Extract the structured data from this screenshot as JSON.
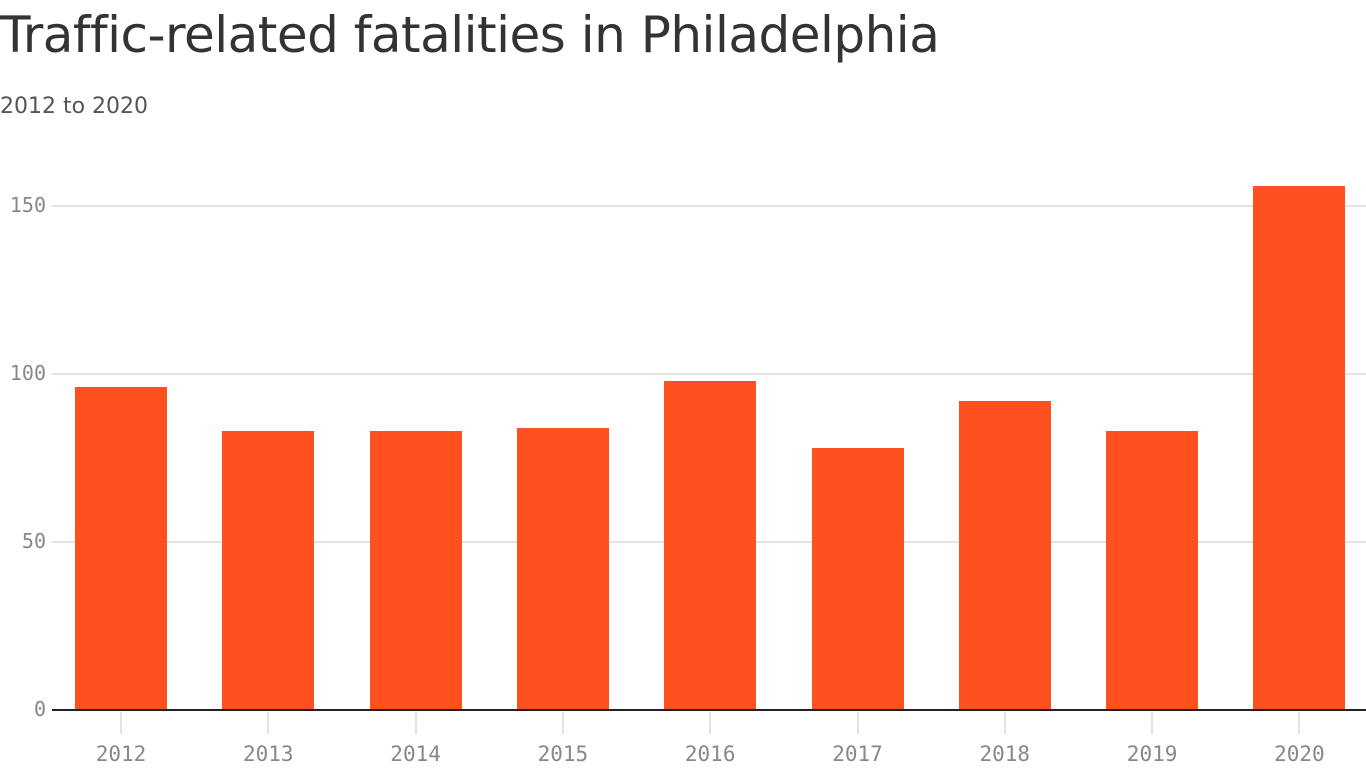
{
  "header": {
    "title": "Traffic-related fatalities in Philadelphia",
    "subtitle": "2012 to 2020"
  },
  "colors": {
    "bar": "#ff5020",
    "grid": "#e3e3e3",
    "axis": "#222222",
    "tick_text": "#888888"
  },
  "chart_data": {
    "type": "bar",
    "title": "Traffic-related fatalities in Philadelphia",
    "subtitle": "2012 to 2020",
    "xlabel": "",
    "ylabel": "",
    "categories": [
      "2012",
      "2013",
      "2014",
      "2015",
      "2016",
      "2017",
      "2018",
      "2019",
      "2020"
    ],
    "values": [
      96,
      83,
      83,
      84,
      98,
      78,
      92,
      83,
      156
    ],
    "ylim": [
      0,
      160
    ],
    "yticks": [
      "0",
      "50",
      "100",
      "150"
    ],
    "grid": true,
    "legend": null
  }
}
